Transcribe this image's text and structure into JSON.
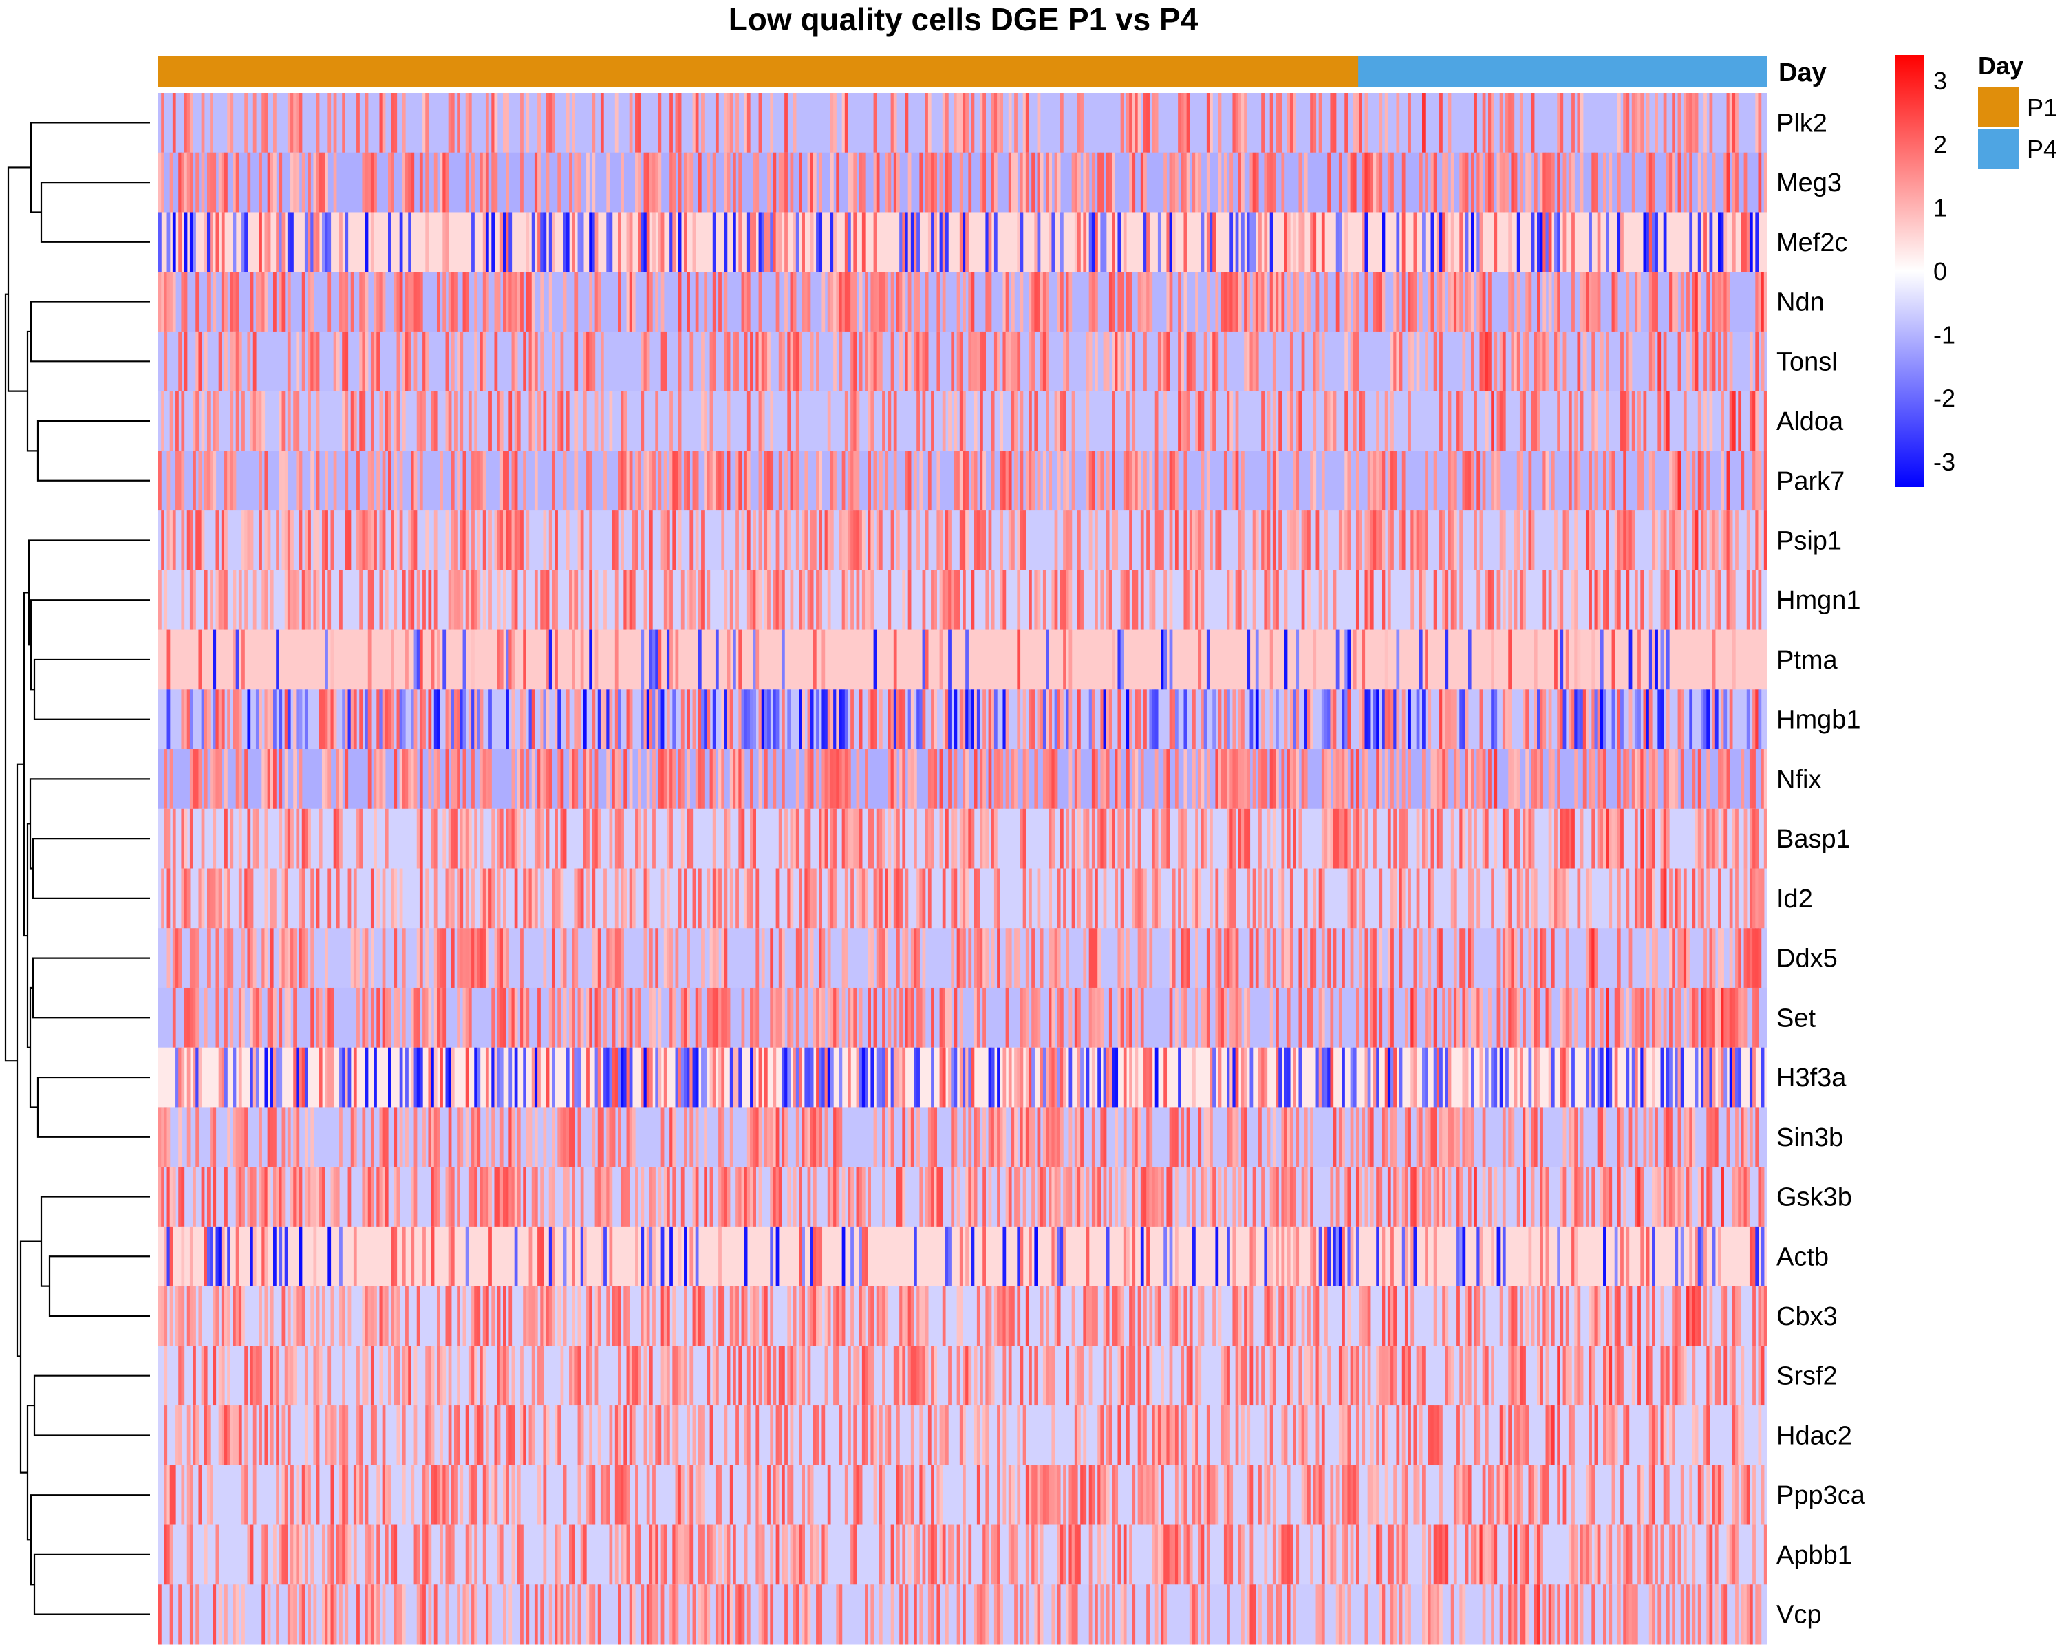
{
  "chart_data": {
    "type": "heatmap",
    "title": "Low quality cells DGE P1 vs P4",
    "rows": [
      "Plk2",
      "Meg3",
      "Mef2c",
      "Ndn",
      "Tonsl",
      "Aldoa",
      "Park7",
      "Psip1",
      "Hmgn1",
      "Ptma",
      "Hmgb1",
      "Nfix",
      "Basp1",
      "Id2",
      "Ddx5",
      "Set",
      "H3f3a",
      "Sin3b",
      "Gsk3b",
      "Actb",
      "Cbx3",
      "Srsf2",
      "Hdac2",
      "Ppp3ca",
      "Apbb1",
      "Vcp"
    ],
    "row_baseline": [
      -0.9,
      -1.1,
      0.5,
      -1.0,
      -0.9,
      -0.8,
      -1.0,
      -0.7,
      -0.6,
      0.7,
      -0.8,
      -1.1,
      -0.6,
      -0.6,
      -0.8,
      -0.9,
      0.3,
      -0.8,
      -0.7,
      0.5,
      -0.6,
      -0.6,
      -0.6,
      -0.6,
      -0.6,
      -0.7
    ],
    "row_high_fraction": [
      0.35,
      0.45,
      0.2,
      0.5,
      0.4,
      0.35,
      0.45,
      0.45,
      0.45,
      0.1,
      0.35,
      0.5,
      0.45,
      0.45,
      0.45,
      0.5,
      0.25,
      0.45,
      0.5,
      0.15,
      0.5,
      0.5,
      0.45,
      0.45,
      0.45,
      0.45
    ],
    "row_low_fraction": [
      0,
      0,
      0.22,
      0,
      0,
      0,
      0,
      0,
      0,
      0.1,
      0.25,
      0,
      0,
      0,
      0,
      0,
      0.28,
      0,
      0,
      0.12,
      0,
      0,
      0,
      0,
      0,
      0
    ],
    "row_dendrogram_order": [
      "Plk2",
      "Meg3",
      "Mef2c",
      "Ndn",
      "Tonsl",
      "Aldoa",
      "Park7",
      "Psip1",
      "Hmgn1",
      "Ptma",
      "Hmgb1",
      "Nfix",
      "Basp1",
      "Id2",
      "Ddx5",
      "Set",
      "H3f3a",
      "Sin3b",
      "Gsk3b",
      "Actb",
      "Cbx3",
      "Srsf2",
      "Hdac2",
      "Ppp3ca",
      "Apbb1",
      "Vcp"
    ],
    "column_annotation": {
      "name": "Day",
      "groups": [
        {
          "label": "P1",
          "fraction": 0.746,
          "color": "#E08E0B"
        },
        {
          "label": "P4",
          "fraction": 0.254,
          "color": "#4EA5E3"
        }
      ]
    },
    "n_columns": 560,
    "color_scale": {
      "min": -3.4,
      "max": 3.4,
      "ticks": [
        3,
        2,
        1,
        0,
        -1,
        -2,
        -3
      ],
      "tick_labels": [
        "3",
        "2",
        "1",
        "0",
        "-1",
        "-2",
        "-3"
      ],
      "colors": [
        "#0000FF",
        "#FFFFFF",
        "#FF0000"
      ]
    },
    "legend": {
      "title": "Day",
      "items": [
        {
          "label": "P1",
          "color": "#E08E0B"
        },
        {
          "label": "P4",
          "color": "#4EA5E3"
        }
      ]
    }
  }
}
